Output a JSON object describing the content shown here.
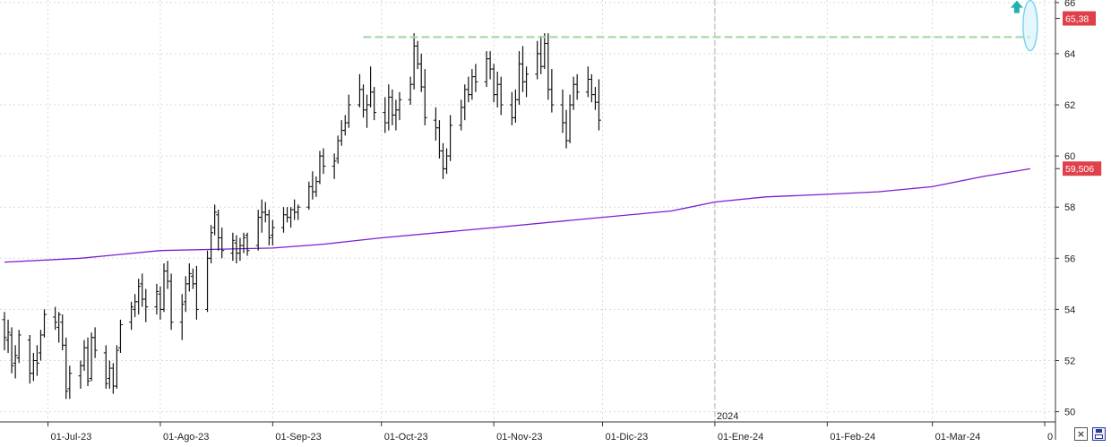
{
  "chart_data": {
    "type": "ohlc",
    "y_ticks": [
      "50",
      "52",
      "54",
      "56",
      "58",
      "60",
      "62",
      "64",
      "66"
    ],
    "ylim": [
      49.6,
      66.1
    ],
    "x_labels": [
      {
        "date": "2023-07-01",
        "label": "01-Jul-23"
      },
      {
        "date": "2023-08-01",
        "label": "01-Ago-23"
      },
      {
        "date": "2023-09-01",
        "label": "01-Sep-23"
      },
      {
        "date": "2023-10-01",
        "label": "01-Oct-23"
      },
      {
        "date": "2023-11-01",
        "label": "01-Nov-23"
      },
      {
        "date": "2023-12-01",
        "label": "01-Dic-23"
      },
      {
        "date": "2024-01-01",
        "label": "01-Ene-24"
      },
      {
        "date": "2024-02-01",
        "label": "01-Feb-24"
      },
      {
        "date": "2024-03-01",
        "label": "01-Mar-24"
      },
      {
        "date": "2024-04-01",
        "label": "0"
      }
    ],
    "year_marker": {
      "date": "2024-01-01",
      "label": "2024"
    },
    "last_price": {
      "value": 65.38,
      "label": "65,38",
      "color": "#e0404a"
    },
    "ma_value": {
      "value": 59.506,
      "label": "59,506",
      "color": "#e0404a"
    },
    "moving_average": {
      "color": "#7a1fd0",
      "points": [
        [
          "2023-06-19",
          55.85
        ],
        [
          "2023-07-10",
          56.0
        ],
        [
          "2023-08-01",
          56.3
        ],
        [
          "2023-09-01",
          56.4
        ],
        [
          "2023-09-15",
          56.55
        ],
        [
          "2023-10-01",
          56.8
        ],
        [
          "2023-11-01",
          57.2
        ],
        [
          "2023-12-01",
          57.6
        ],
        [
          "2023-12-20",
          57.85
        ],
        [
          "2024-01-01",
          58.2
        ],
        [
          "2024-01-15",
          58.4
        ],
        [
          "2024-02-01",
          58.5
        ],
        [
          "2024-02-15",
          58.6
        ],
        [
          "2024-03-01",
          58.8
        ],
        [
          "2024-03-15",
          59.2
        ],
        [
          "2024-03-28",
          59.5
        ]
      ]
    },
    "resistance": {
      "value": 64.65,
      "from": "2023-09-26",
      "to": "2024-03-28",
      "color": "#a8d8a8"
    },
    "signal": {
      "date": "2024-03-28",
      "color": "#20b2b0"
    },
    "bars": [
      [
        "2023-06-19",
        53.6,
        53.9,
        52.4,
        52.9
      ],
      [
        "2023-06-20",
        52.8,
        53.6,
        52.3,
        53.1
      ],
      [
        "2023-06-21",
        53.0,
        53.3,
        51.5,
        51.8
      ],
      [
        "2023-06-22",
        51.9,
        52.6,
        51.3,
        52.2
      ],
      [
        "2023-06-23",
        52.1,
        53.2,
        51.9,
        53.0
      ],
      [
        "2023-06-26",
        52.8,
        53.0,
        51.1,
        51.5
      ],
      [
        "2023-06-27",
        51.5,
        52.3,
        51.2,
        52.0
      ],
      [
        "2023-06-28",
        52.0,
        52.6,
        51.4,
        51.9
      ],
      [
        "2023-06-29",
        52.3,
        53.2,
        52.0,
        53.0
      ],
      [
        "2023-06-30",
        53.0,
        54.0,
        52.9,
        53.8
      ],
      [
        "2023-07-03",
        53.7,
        54.1,
        53.2,
        53.5
      ],
      [
        "2023-07-04",
        53.3,
        53.9,
        52.7,
        53.8
      ],
      [
        "2023-07-05",
        53.5,
        53.8,
        52.4,
        52.6
      ],
      [
        "2023-07-06",
        52.6,
        52.9,
        50.5,
        50.8
      ],
      [
        "2023-07-07",
        50.9,
        51.8,
        50.5,
        51.5
      ],
      [
        "2023-07-10",
        51.4,
        52.0,
        50.9,
        51.8
      ],
      [
        "2023-07-11",
        51.8,
        52.8,
        51.6,
        52.5
      ],
      [
        "2023-07-12",
        52.5,
        52.9,
        51.0,
        51.2
      ],
      [
        "2023-07-13",
        51.3,
        53.1,
        51.2,
        52.9
      ],
      [
        "2023-07-14",
        52.9,
        53.3,
        52.1,
        52.4
      ],
      [
        "2023-07-17",
        52.3,
        52.6,
        50.9,
        51.1
      ],
      [
        "2023-07-18",
        51.3,
        52.0,
        50.9,
        51.7
      ],
      [
        "2023-07-19",
        51.7,
        51.9,
        50.7,
        51.0
      ],
      [
        "2023-07-20",
        51.0,
        52.6,
        50.9,
        52.4
      ],
      [
        "2023-07-21",
        52.5,
        53.6,
        52.3,
        53.4
      ],
      [
        "2023-07-24",
        53.5,
        54.3,
        53.2,
        54.1
      ],
      [
        "2023-07-25",
        54.0,
        54.6,
        53.7,
        54.3
      ],
      [
        "2023-07-26",
        54.3,
        55.2,
        53.8,
        54.9
      ],
      [
        "2023-07-27",
        55.0,
        55.4,
        54.1,
        54.4
      ],
      [
        "2023-07-28",
        54.4,
        54.8,
        53.5,
        54.1
      ],
      [
        "2023-07-31",
        54.1,
        55.0,
        53.8,
        54.7
      ],
      [
        "2023-08-01",
        54.6,
        54.9,
        53.6,
        54.0
      ],
      [
        "2023-08-02",
        54.0,
        55.8,
        53.9,
        55.5
      ],
      [
        "2023-08-03",
        55.5,
        55.9,
        54.8,
        55.1
      ],
      [
        "2023-08-04",
        55.1,
        55.4,
        53.2,
        53.5
      ],
      [
        "2023-08-07",
        53.5,
        54.6,
        52.8,
        54.2
      ],
      [
        "2023-08-08",
        54.3,
        55.3,
        53.9,
        55.0
      ],
      [
        "2023-08-09",
        55.0,
        55.8,
        54.7,
        55.4
      ],
      [
        "2023-08-10",
        55.3,
        55.6,
        54.8,
        55.0
      ],
      [
        "2023-08-11",
        55.0,
        55.7,
        53.6,
        54.0
      ],
      [
        "2023-08-14",
        54.0,
        56.3,
        53.9,
        56.0
      ],
      [
        "2023-08-15",
        56.0,
        57.3,
        55.8,
        57.0
      ],
      [
        "2023-08-16",
        57.2,
        58.1,
        56.9,
        57.8
      ],
      [
        "2023-08-17",
        57.7,
        57.9,
        56.3,
        56.8
      ],
      [
        "2023-08-18",
        56.8,
        57.2,
        56.0,
        56.3
      ],
      [
        "2023-08-21",
        56.2,
        57.0,
        55.9,
        56.7
      ],
      [
        "2023-08-22",
        56.6,
        56.9,
        55.8,
        56.2
      ],
      [
        "2023-08-23",
        56.2,
        56.8,
        55.9,
        56.5
      ],
      [
        "2023-08-24",
        56.5,
        57.0,
        56.2,
        56.8
      ],
      [
        "2023-08-25",
        56.9,
        57.0,
        56.1,
        56.3
      ],
      [
        "2023-08-28",
        56.5,
        57.9,
        56.3,
        57.6
      ],
      [
        "2023-08-29",
        57.6,
        58.3,
        57.0,
        57.8
      ],
      [
        "2023-08-30",
        57.8,
        58.2,
        57.4,
        57.7
      ],
      [
        "2023-08-31",
        57.7,
        57.9,
        56.5,
        56.8
      ],
      [
        "2023-09-01",
        56.9,
        57.5,
        56.5,
        57.2
      ],
      [
        "2023-09-04",
        57.2,
        58.0,
        57.0,
        57.7
      ],
      [
        "2023-09-05",
        57.7,
        58.0,
        57.4,
        57.6
      ],
      [
        "2023-09-06",
        57.6,
        58.0,
        57.2,
        57.9
      ],
      [
        "2023-09-07",
        57.9,
        58.3,
        57.5,
        57.8
      ],
      [
        "2023-09-08",
        57.8,
        58.1,
        57.5,
        58.0
      ],
      [
        "2023-09-11",
        58.0,
        59.0,
        57.9,
        58.8
      ],
      [
        "2023-09-12",
        58.8,
        59.4,
        58.3,
        58.6
      ],
      [
        "2023-09-13",
        58.6,
        59.2,
        58.4,
        59.0
      ],
      [
        "2023-09-14",
        59.0,
        60.2,
        58.9,
        60.0
      ],
      [
        "2023-09-15",
        60.0,
        60.3,
        59.3,
        59.6
      ],
      [
        "2023-09-18",
        59.6,
        60.1,
        59.1,
        59.8
      ],
      [
        "2023-09-19",
        59.9,
        60.8,
        59.7,
        60.6
      ],
      [
        "2023-09-20",
        60.6,
        61.4,
        60.4,
        61.0
      ],
      [
        "2023-09-21",
        61.0,
        61.6,
        60.8,
        61.3
      ],
      [
        "2023-09-22",
        61.3,
        62.4,
        61.1,
        62.0
      ],
      [
        "2023-09-25",
        62.0,
        63.2,
        61.9,
        62.6
      ],
      [
        "2023-09-26",
        62.6,
        62.8,
        61.5,
        61.8
      ],
      [
        "2023-09-27",
        61.8,
        62.4,
        61.1,
        62.0
      ],
      [
        "2023-09-28",
        62.0,
        63.5,
        61.9,
        62.5
      ],
      [
        "2023-09-29",
        62.5,
        62.7,
        61.4,
        61.7
      ],
      [
        "2023-10-02",
        61.7,
        62.3,
        60.9,
        61.3
      ],
      [
        "2023-10-03",
        61.3,
        62.8,
        61.0,
        62.3
      ],
      [
        "2023-10-04",
        62.3,
        62.6,
        61.2,
        61.6
      ],
      [
        "2023-10-05",
        61.6,
        62.2,
        61.0,
        61.8
      ],
      [
        "2023-10-06",
        61.8,
        62.5,
        61.4,
        62.2
      ],
      [
        "2023-10-09",
        62.2,
        63.1,
        62.0,
        62.8
      ],
      [
        "2023-10-10",
        62.8,
        64.8,
        62.6,
        64.3
      ],
      [
        "2023-10-11",
        64.3,
        64.5,
        63.4,
        63.6
      ],
      [
        "2023-10-12",
        63.6,
        64.0,
        62.5,
        62.7
      ],
      [
        "2023-10-13",
        62.7,
        63.4,
        61.2,
        61.5
      ],
      [
        "2023-10-16",
        61.4,
        61.9,
        60.6,
        61.1
      ],
      [
        "2023-10-17",
        61.1,
        61.4,
        59.9,
        60.2
      ],
      [
        "2023-10-18",
        60.2,
        60.5,
        59.1,
        59.5
      ],
      [
        "2023-10-19",
        59.5,
        60.3,
        59.3,
        60.0
      ],
      [
        "2023-10-20",
        60.0,
        61.6,
        59.8,
        61.2
      ],
      [
        "2023-10-23",
        61.2,
        62.2,
        61.0,
        61.9
      ],
      [
        "2023-10-24",
        61.9,
        62.8,
        61.4,
        62.6
      ],
      [
        "2023-10-25",
        62.6,
        63.1,
        62.1,
        62.4
      ],
      [
        "2023-10-26",
        62.4,
        63.4,
        62.2,
        63.1
      ],
      [
        "2023-10-27",
        63.1,
        63.6,
        62.5,
        62.9
      ],
      [
        "2023-10-30",
        62.9,
        64.1,
        62.7,
        63.8
      ],
      [
        "2023-10-31",
        63.8,
        64.1,
        63.0,
        63.4
      ],
      [
        "2023-11-01",
        63.4,
        63.6,
        62.1,
        62.4
      ],
      [
        "2023-11-02",
        62.4,
        63.3,
        61.9,
        62.8
      ],
      [
        "2023-11-03",
        62.8,
        63.1,
        61.6,
        62.0
      ],
      [
        "2023-11-06",
        62.0,
        62.5,
        61.2,
        61.5
      ],
      [
        "2023-11-07",
        61.5,
        62.6,
        61.3,
        62.2
      ],
      [
        "2023-11-08",
        62.2,
        64.1,
        62.0,
        63.6
      ],
      [
        "2023-11-09",
        63.6,
        64.3,
        62.5,
        62.9
      ],
      [
        "2023-11-10",
        62.9,
        63.5,
        62.3,
        63.2
      ],
      [
        "2023-11-13",
        63.2,
        64.5,
        63.0,
        64.0
      ],
      [
        "2023-11-14",
        64.0,
        64.7,
        63.2,
        63.5
      ],
      [
        "2023-11-15",
        63.5,
        64.8,
        63.4,
        64.4
      ],
      [
        "2023-11-16",
        64.4,
        64.8,
        62.2,
        62.6
      ],
      [
        "2023-11-17",
        62.6,
        63.4,
        61.7,
        62.0
      ],
      [
        "2023-11-20",
        62.0,
        62.6,
        60.9,
        61.3
      ],
      [
        "2023-11-21",
        61.3,
        61.8,
        60.3,
        60.6
      ],
      [
        "2023-11-22",
        60.6,
        62.4,
        60.5,
        62.0
      ],
      [
        "2023-11-23",
        62.0,
        63.1,
        61.8,
        62.8
      ],
      [
        "2023-11-24",
        62.8,
        63.2,
        62.2,
        62.5
      ],
      [
        "2023-11-27",
        62.5,
        63.5,
        62.3,
        63.0
      ],
      [
        "2023-11-28",
        63.0,
        63.2,
        62.1,
        62.4
      ],
      [
        "2023-11-29",
        62.4,
        62.7,
        61.8,
        62.1
      ],
      [
        "2023-11-30",
        62.1,
        63.0,
        61.0,
        61.4
      ]
    ]
  }
}
